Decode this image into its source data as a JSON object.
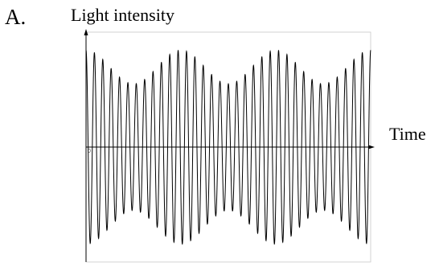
{
  "option_letter": "A.",
  "chart_data": {
    "type": "line",
    "title": "",
    "xlabel": "Time",
    "ylabel": "Light intensity",
    "origin_label": "0",
    "grid": false,
    "legend": "none",
    "xlim": [
      0,
      1
    ],
    "ylim": [
      -1,
      1
    ],
    "series": [
      {
        "carrier_cycles": 34,
        "beat_cycles": 3,
        "envelope_min": 0.62,
        "envelope_max": 0.95,
        "color": "#000000"
      }
    ]
  }
}
